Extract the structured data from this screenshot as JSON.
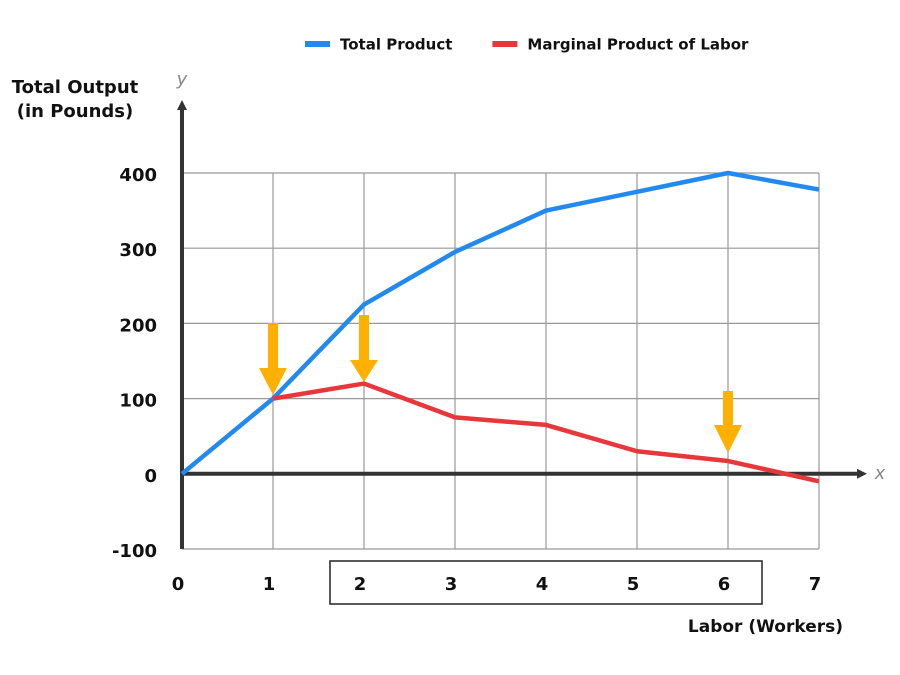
{
  "chart_data": {
    "type": "line",
    "legend": "top",
    "y_label": [
      "Total Output",
      "(in Pounds)"
    ],
    "y_axis_symbol": "y",
    "x_axis_symbol": "x",
    "x_label": "Labor (Workers)",
    "x": [
      0,
      1,
      2,
      3,
      4,
      5,
      6,
      7
    ],
    "series": [
      {
        "name": "Total Product",
        "color": "#2289ef",
        "values": [
          0,
          100,
          225,
          295,
          350,
          375,
          400,
          378
        ]
      },
      {
        "name": "Marginal Product of Labor",
        "color": "#e8373a",
        "values": [
          null,
          100,
          120,
          75,
          65,
          30,
          17,
          -10
        ]
      }
    ],
    "xlim": [
      0,
      7
    ],
    "xticks": [
      0,
      1,
      2,
      3,
      4,
      5,
      6,
      7
    ],
    "ylim": [
      -100,
      400
    ],
    "yticks": [
      -100,
      0,
      100,
      200,
      300,
      400
    ],
    "grid": true
  }
}
